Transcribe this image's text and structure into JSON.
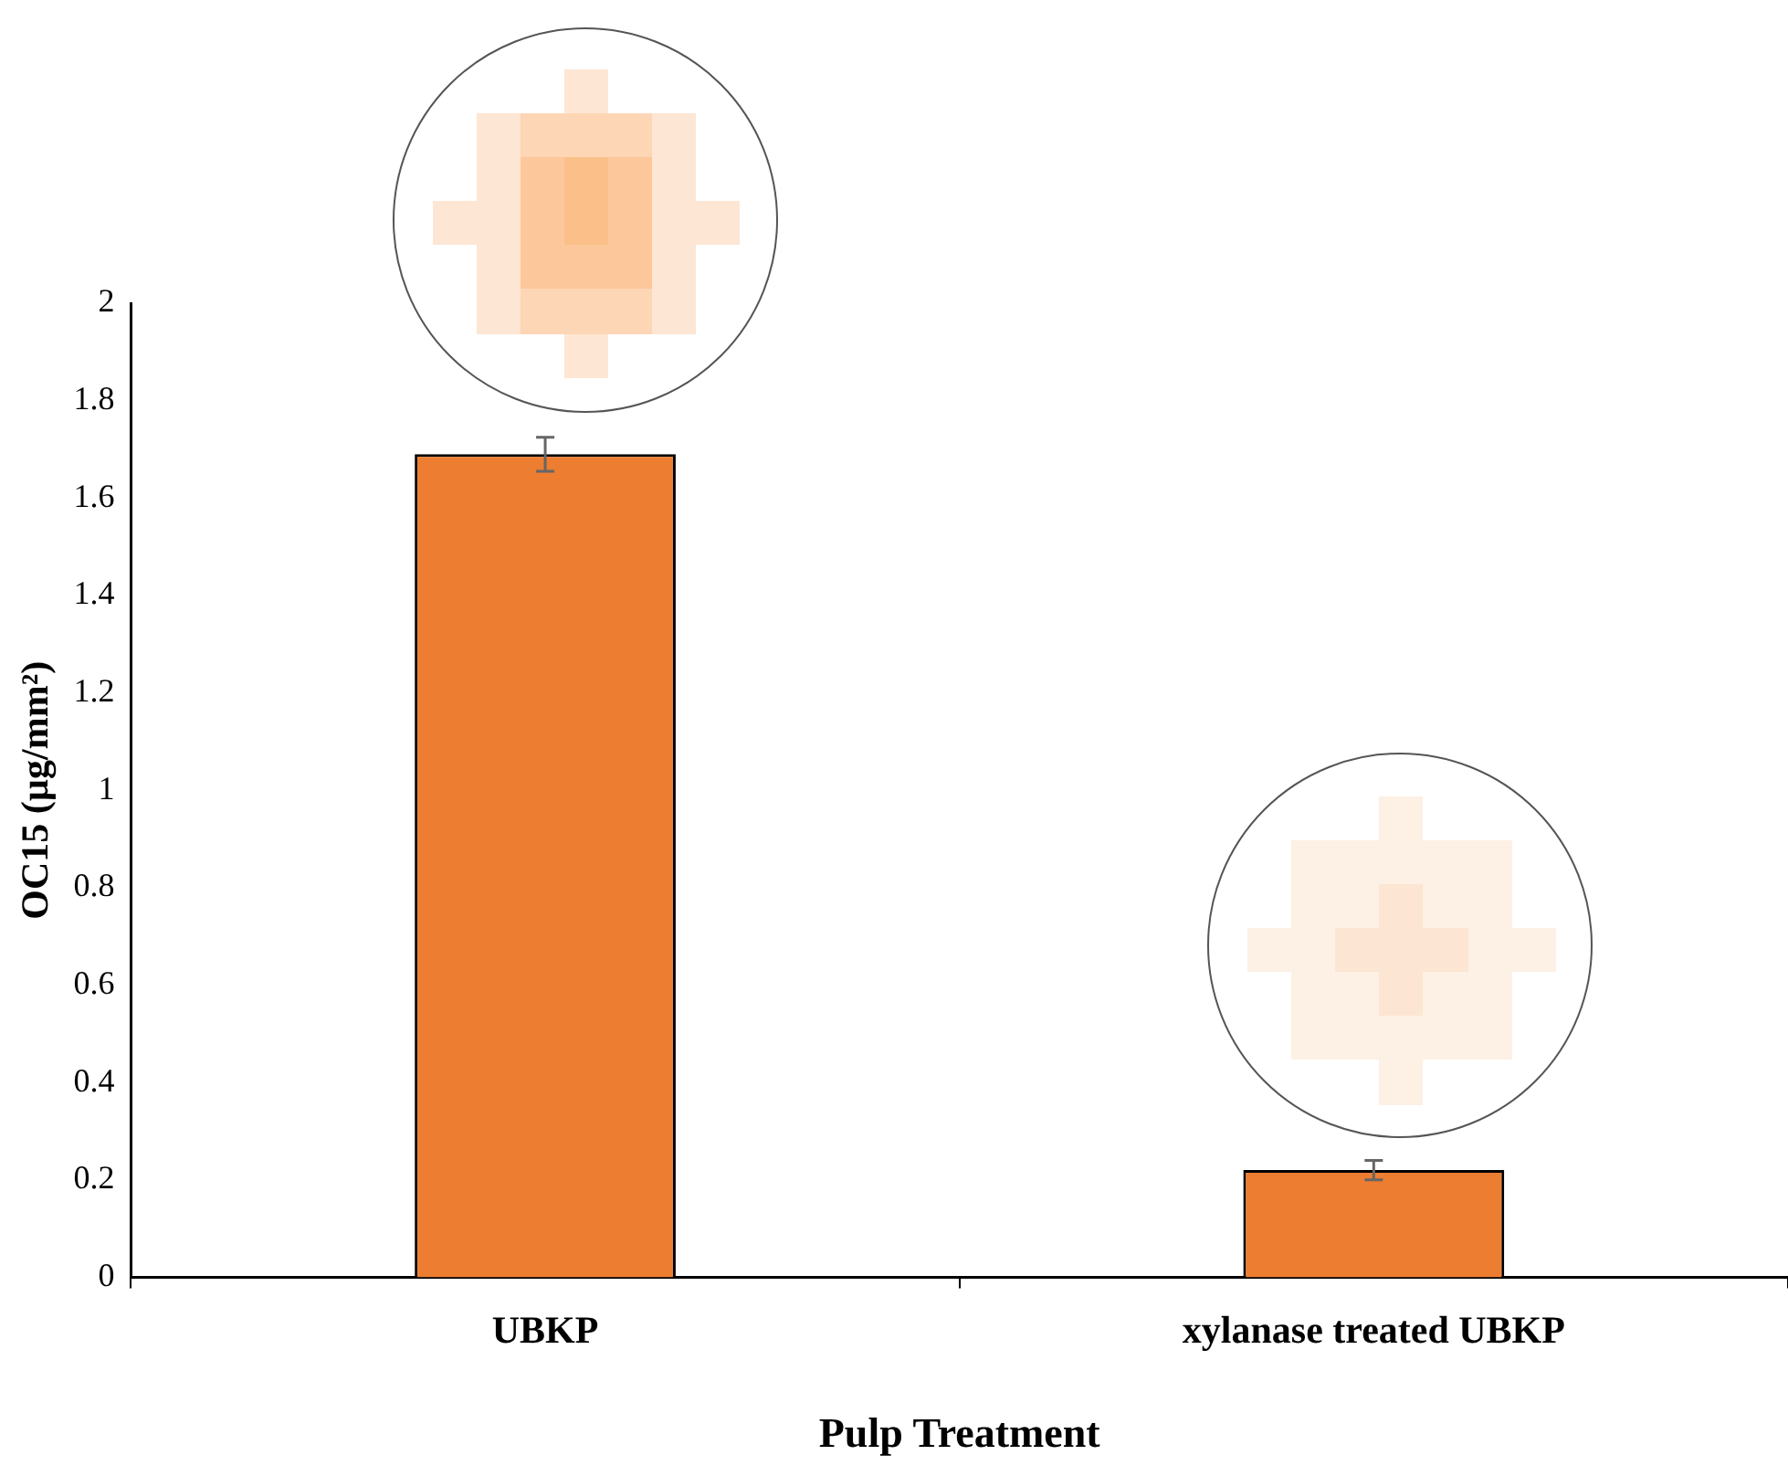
{
  "chart_data": {
    "type": "bar",
    "xlabel": "Pulp Treatment",
    "ylabel": "OC15 (µg/mm²)",
    "categories": [
      "UBKP",
      "xylanase treated UBKP"
    ],
    "values": [
      1.69,
      0.22
    ],
    "errors": [
      0.035,
      0.02
    ],
    "color": "#ed7d31",
    "ylim": [
      0,
      2
    ],
    "yticks": [
      0,
      0.2,
      0.4,
      0.6,
      0.8,
      1,
      1.2,
      1.4,
      1.6,
      1.8,
      2
    ],
    "grid": false,
    "legend": false
  }
}
